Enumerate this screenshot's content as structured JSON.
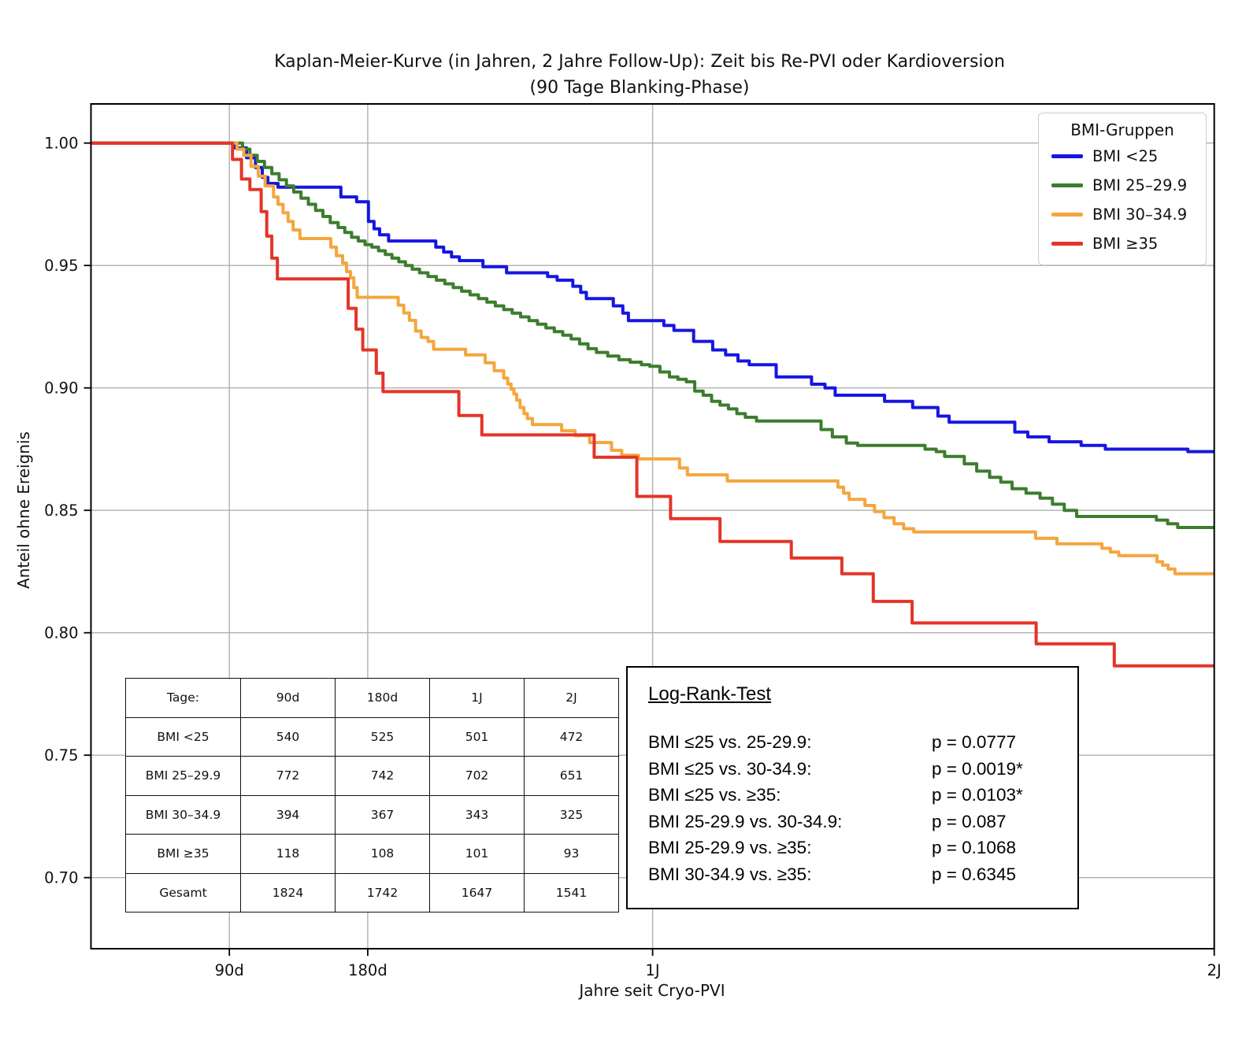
{
  "title": {
    "line1": "Kaplan-Meier-Kurve (in Jahren, 2 Jahre Follow-Up): Zeit bis Re-PVI oder Kardioversion",
    "line2": "(90 Tage Blanking-Phase)"
  },
  "axes": {
    "x_label": "Jahre seit Cryo-PVI",
    "y_label": "Anteil ohne Ereignis"
  },
  "legend": {
    "title": "BMI-Gruppen",
    "items": [
      {
        "label": "BMI <25",
        "color": "#1616e0"
      },
      {
        "label": "BMI 25–29.9",
        "color": "#3c7d2e"
      },
      {
        "label": "BMI 30–34.9",
        "color": "#f4a63e"
      },
      {
        "label": "BMI ≥35",
        "color": "#e33528"
      }
    ]
  },
  "risk_table": {
    "header": [
      "Tage:",
      "90d",
      "180d",
      "1J",
      "2J"
    ],
    "rows": [
      [
        "BMI <25",
        "540",
        "525",
        "501",
        "472"
      ],
      [
        "BMI 25–29.9",
        "772",
        "742",
        "702",
        "651"
      ],
      [
        "BMI 30–34.9",
        "394",
        "367",
        "343",
        "325"
      ],
      [
        "BMI ≥35",
        "118",
        "108",
        "101",
        "93"
      ],
      [
        "Gesamt",
        "1824",
        "1742",
        "1647",
        "1541"
      ]
    ]
  },
  "logrank": {
    "title": "Log-Rank-Test",
    "rows": [
      {
        "label": "BMI ≤25 vs. 25-29.9:",
        "p": "p = 0.0777"
      },
      {
        "label": "BMI ≤25 vs. 30-34.9:",
        "p": "p = 0.0019*"
      },
      {
        "label": "BMI ≤25 vs. ≥35:",
        "p": "p = 0.0103*"
      },
      {
        "label": "BMI 25-29.9 vs. 30-34.9:",
        "p": "p = 0.087"
      },
      {
        "label": "BMI 25-29.9 vs. ≥35:",
        "p": "p = 0.1068"
      },
      {
        "label": "BMI 30-34.9 vs. ≥35:",
        "p": "p = 0.6345"
      }
    ]
  },
  "chart_data": {
    "type": "line",
    "subtype": "kaplan-meier-step",
    "title": "Kaplan-Meier-Kurve (in Jahren, 2 Jahre Follow-Up): Zeit bis Re-PVI oder Kardioversion (90 Tage Blanking-Phase)",
    "xlabel": "Jahre seit Cryo-PVI",
    "ylabel": "Anteil ohne Ereignis",
    "xlim": [
      0,
      2
    ],
    "ylim": [
      0.671,
      1.016
    ],
    "grid": true,
    "grid_color": "#b0b0b0",
    "x_ticks": [
      {
        "label": "90d",
        "year": 0.2464
      },
      {
        "label": "180d",
        "year": 0.4928
      },
      {
        "label": "1J",
        "year": 1.0
      },
      {
        "label": "2J",
        "year": 2.0
      }
    ],
    "y_ticks": [
      {
        "label": "1.00",
        "value": 1.0
      },
      {
        "label": "0.95",
        "value": 0.95
      },
      {
        "label": "0.90",
        "value": 0.9
      },
      {
        "label": "0.85",
        "value": 0.85
      },
      {
        "label": "0.80",
        "value": 0.8
      },
      {
        "label": "0.75",
        "value": 0.75
      },
      {
        "label": "0.70",
        "value": 0.7
      }
    ],
    "series": [
      {
        "name": "BMI <25",
        "color": "#1616e0",
        "start": [
          0,
          1.0
        ],
        "steps": [
          [
            0.255,
            0.998
          ],
          [
            0.277,
            0.994
          ],
          [
            0.293,
            0.99
          ],
          [
            0.305,
            0.986
          ],
          [
            0.315,
            0.9835
          ],
          [
            0.333,
            0.982
          ],
          [
            0.445,
            0.978
          ],
          [
            0.473,
            0.976
          ],
          [
            0.494,
            0.968
          ],
          [
            0.504,
            0.965
          ],
          [
            0.514,
            0.9625
          ],
          [
            0.53,
            0.96
          ],
          [
            0.614,
            0.9575
          ],
          [
            0.628,
            0.9555
          ],
          [
            0.642,
            0.9535
          ],
          [
            0.656,
            0.952
          ],
          [
            0.698,
            0.9495
          ],
          [
            0.74,
            0.947
          ],
          [
            0.813,
            0.9455
          ],
          [
            0.83,
            0.944
          ],
          [
            0.858,
            0.9415
          ],
          [
            0.872,
            0.939
          ],
          [
            0.882,
            0.9365
          ],
          [
            0.93,
            0.9335
          ],
          [
            0.947,
            0.9305
          ],
          [
            0.957,
            0.9275
          ],
          [
            1.02,
            0.9255
          ],
          [
            1.038,
            0.9235
          ],
          [
            1.073,
            0.919
          ],
          [
            1.107,
            0.9155
          ],
          [
            1.13,
            0.9135
          ],
          [
            1.152,
            0.911
          ],
          [
            1.172,
            0.9095
          ],
          [
            1.22,
            0.9045
          ],
          [
            1.283,
            0.9015
          ],
          [
            1.307,
            0.9
          ],
          [
            1.325,
            0.897
          ],
          [
            1.413,
            0.8945
          ],
          [
            1.463,
            0.892
          ],
          [
            1.508,
            0.8885
          ],
          [
            1.528,
            0.886
          ],
          [
            1.645,
            0.882
          ],
          [
            1.668,
            0.88
          ],
          [
            1.706,
            0.878
          ],
          [
            1.763,
            0.8765
          ],
          [
            1.806,
            0.875
          ],
          [
            1.953,
            0.874
          ]
        ]
      },
      {
        "name": "BMI 25–29.9",
        "color": "#3c7d2e",
        "start": [
          0,
          1.0
        ],
        "steps": [
          [
            0.27,
            0.9975
          ],
          [
            0.283,
            0.995
          ],
          [
            0.296,
            0.9925
          ],
          [
            0.309,
            0.99
          ],
          [
            0.322,
            0.9875
          ],
          [
            0.335,
            0.985
          ],
          [
            0.348,
            0.9825
          ],
          [
            0.361,
            0.98
          ],
          [
            0.374,
            0.9775
          ],
          [
            0.387,
            0.975
          ],
          [
            0.4,
            0.9725
          ],
          [
            0.413,
            0.97
          ],
          [
            0.426,
            0.9675
          ],
          [
            0.44,
            0.9655
          ],
          [
            0.452,
            0.9635
          ],
          [
            0.464,
            0.9615
          ],
          [
            0.476,
            0.96
          ],
          [
            0.488,
            0.9585
          ],
          [
            0.5,
            0.9575
          ],
          [
            0.512,
            0.956
          ],
          [
            0.524,
            0.9545
          ],
          [
            0.536,
            0.953
          ],
          [
            0.548,
            0.9515
          ],
          [
            0.56,
            0.95
          ],
          [
            0.572,
            0.9485
          ],
          [
            0.585,
            0.947
          ],
          [
            0.6,
            0.9455
          ],
          [
            0.615,
            0.944
          ],
          [
            0.63,
            0.9425
          ],
          [
            0.645,
            0.941
          ],
          [
            0.66,
            0.9395
          ],
          [
            0.675,
            0.938
          ],
          [
            0.69,
            0.9365
          ],
          [
            0.705,
            0.935
          ],
          [
            0.72,
            0.9335
          ],
          [
            0.735,
            0.932
          ],
          [
            0.75,
            0.9305
          ],
          [
            0.765,
            0.929
          ],
          [
            0.78,
            0.9275
          ],
          [
            0.795,
            0.926
          ],
          [
            0.81,
            0.9245
          ],
          [
            0.825,
            0.923
          ],
          [
            0.84,
            0.9215
          ],
          [
            0.855,
            0.92
          ],
          [
            0.87,
            0.918
          ],
          [
            0.885,
            0.916
          ],
          [
            0.9,
            0.9145
          ],
          [
            0.92,
            0.913
          ],
          [
            0.94,
            0.9115
          ],
          [
            0.96,
            0.9105
          ],
          [
            0.98,
            0.9095
          ],
          [
            0.995,
            0.9088
          ],
          [
            1.013,
            0.9065
          ],
          [
            1.03,
            0.9045
          ],
          [
            1.045,
            0.9035
          ],
          [
            1.06,
            0.9025
          ],
          [
            1.075,
            0.8987
          ],
          [
            1.09,
            0.897
          ],
          [
            1.105,
            0.8945
          ],
          [
            1.12,
            0.893
          ],
          [
            1.135,
            0.8914
          ],
          [
            1.15,
            0.8895
          ],
          [
            1.165,
            0.888
          ],
          [
            1.185,
            0.8865
          ],
          [
            1.3,
            0.883
          ],
          [
            1.32,
            0.88
          ],
          [
            1.345,
            0.8775
          ],
          [
            1.365,
            0.8765
          ],
          [
            1.485,
            0.875
          ],
          [
            1.505,
            0.874
          ],
          [
            1.52,
            0.872
          ],
          [
            1.555,
            0.869
          ],
          [
            1.577,
            0.866
          ],
          [
            1.6,
            0.8635
          ],
          [
            1.62,
            0.8615
          ],
          [
            1.64,
            0.8588
          ],
          [
            1.665,
            0.857
          ],
          [
            1.69,
            0.855
          ],
          [
            1.712,
            0.8525
          ],
          [
            1.733,
            0.85
          ],
          [
            1.755,
            0.8475
          ],
          [
            1.897,
            0.846
          ],
          [
            1.917,
            0.8445
          ],
          [
            1.935,
            0.843
          ]
        ]
      },
      {
        "name": "BMI 30–34.9",
        "color": "#f4a63e",
        "start": [
          0,
          1.0
        ],
        "steps": [
          [
            0.26,
            0.9975
          ],
          [
            0.272,
            0.995
          ],
          [
            0.285,
            0.9905
          ],
          [
            0.298,
            0.9865
          ],
          [
            0.31,
            0.9825
          ],
          [
            0.325,
            0.978
          ],
          [
            0.333,
            0.975
          ],
          [
            0.342,
            0.9715
          ],
          [
            0.351,
            0.968
          ],
          [
            0.36,
            0.9645
          ],
          [
            0.372,
            0.961
          ],
          [
            0.427,
            0.9575
          ],
          [
            0.437,
            0.954
          ],
          [
            0.448,
            0.951
          ],
          [
            0.455,
            0.9475
          ],
          [
            0.462,
            0.945
          ],
          [
            0.468,
            0.941
          ],
          [
            0.474,
            0.937
          ],
          [
            0.547,
            0.9338
          ],
          [
            0.557,
            0.9306
          ],
          [
            0.567,
            0.9276
          ],
          [
            0.578,
            0.9232
          ],
          [
            0.588,
            0.9206
          ],
          [
            0.6,
            0.919
          ],
          [
            0.61,
            0.9158
          ],
          [
            0.667,
            0.9135
          ],
          [
            0.702,
            0.9103
          ],
          [
            0.718,
            0.907
          ],
          [
            0.735,
            0.904
          ],
          [
            0.742,
            0.9016
          ],
          [
            0.748,
            0.8995
          ],
          [
            0.753,
            0.8975
          ],
          [
            0.758,
            0.895
          ],
          [
            0.764,
            0.892
          ],
          [
            0.771,
            0.8895
          ],
          [
            0.777,
            0.8875
          ],
          [
            0.786,
            0.885
          ],
          [
            0.838,
            0.8825
          ],
          [
            0.862,
            0.8805
          ],
          [
            0.888,
            0.8777
          ],
          [
            0.927,
            0.8745
          ],
          [
            0.945,
            0.8725
          ],
          [
            0.975,
            0.871
          ],
          [
            1.048,
            0.8673
          ],
          [
            1.062,
            0.8645
          ],
          [
            1.133,
            0.862
          ],
          [
            1.33,
            0.8595
          ],
          [
            1.34,
            0.857
          ],
          [
            1.35,
            0.8545
          ],
          [
            1.378,
            0.852
          ],
          [
            1.395,
            0.8495
          ],
          [
            1.412,
            0.847
          ],
          [
            1.43,
            0.8445
          ],
          [
            1.447,
            0.8425
          ],
          [
            1.465,
            0.8412
          ],
          [
            1.682,
            0.8386
          ],
          [
            1.72,
            0.8363
          ],
          [
            1.8,
            0.8345
          ],
          [
            1.815,
            0.833
          ],
          [
            1.83,
            0.8315
          ],
          [
            1.898,
            0.829
          ],
          [
            1.908,
            0.8276
          ],
          [
            1.918,
            0.826
          ],
          [
            1.93,
            0.8241
          ]
        ]
      },
      {
        "name": "BMI ≥35",
        "color": "#e33528",
        "start": [
          0,
          1.0
        ],
        "steps": [
          [
            0.252,
            0.9933
          ],
          [
            0.268,
            0.9853
          ],
          [
            0.283,
            0.981
          ],
          [
            0.303,
            0.972
          ],
          [
            0.313,
            0.962
          ],
          [
            0.322,
            0.953
          ],
          [
            0.332,
            0.9445
          ],
          [
            0.458,
            0.9325
          ],
          [
            0.472,
            0.924
          ],
          [
            0.484,
            0.9155
          ],
          [
            0.508,
            0.906
          ],
          [
            0.52,
            0.8985
          ],
          [
            0.655,
            0.8887
          ],
          [
            0.696,
            0.8808
          ],
          [
            0.896,
            0.8717
          ],
          [
            0.972,
            0.8557
          ],
          [
            1.032,
            0.8466
          ],
          [
            1.12,
            0.8373
          ],
          [
            1.247,
            0.8305
          ],
          [
            1.337,
            0.8241
          ],
          [
            1.393,
            0.8128
          ],
          [
            1.462,
            0.804
          ],
          [
            1.683,
            0.7955
          ],
          [
            1.822,
            0.7865
          ]
        ]
      }
    ]
  }
}
